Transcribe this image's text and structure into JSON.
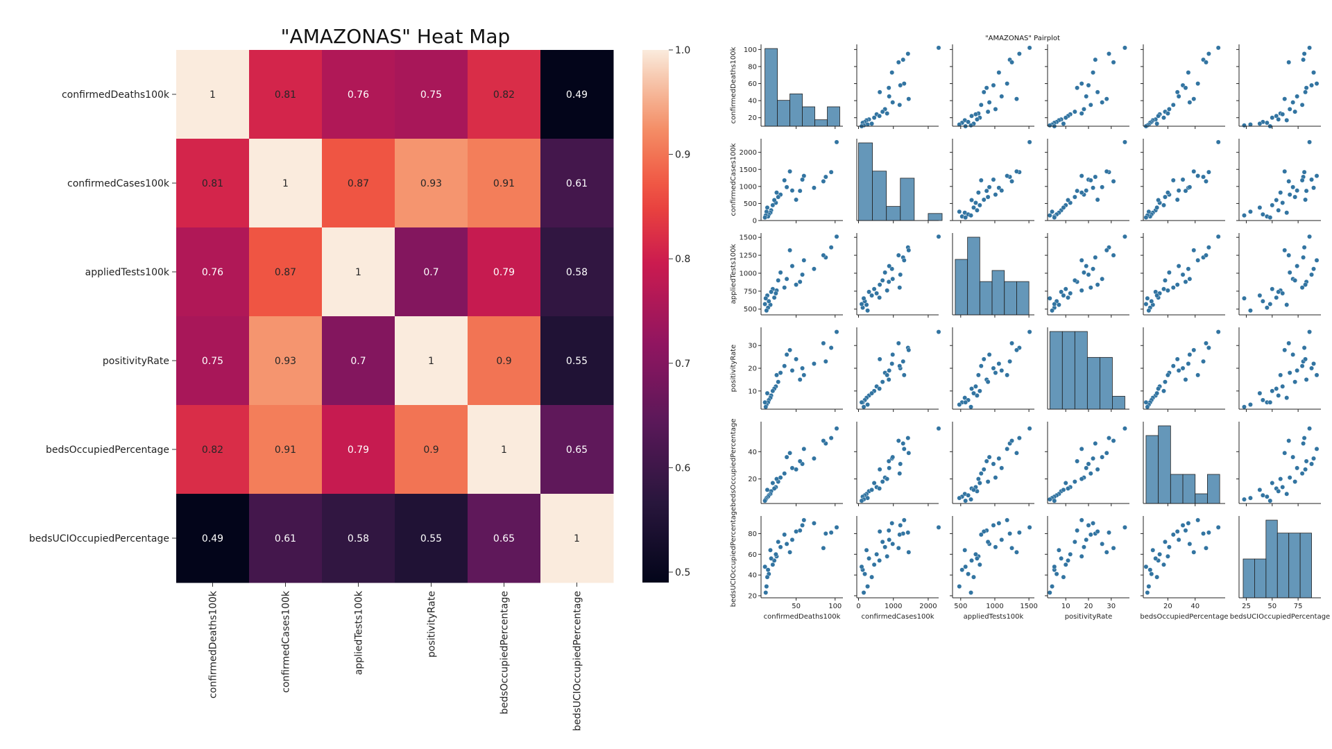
{
  "chart_data": [
    {
      "type": "heatmap",
      "title": "\"AMAZONAS\" Heat Map",
      "variables": [
        "confirmedDeaths100k",
        "confirmedCases100k",
        "appliedTests100k",
        "positivityRate",
        "bedsOccupiedPercentage",
        "bedsUCIOccupiedPercentage"
      ],
      "matrix": [
        [
          1,
          0.81,
          0.76,
          0.75,
          0.82,
          0.49
        ],
        [
          0.81,
          1,
          0.87,
          0.93,
          0.91,
          0.61
        ],
        [
          0.76,
          0.87,
          1,
          0.7,
          0.79,
          0.58
        ],
        [
          0.75,
          0.93,
          0.7,
          1,
          0.9,
          0.55
        ],
        [
          0.82,
          0.91,
          0.79,
          0.9,
          1,
          0.65
        ],
        [
          0.49,
          0.61,
          0.58,
          0.55,
          0.65,
          1
        ]
      ],
      "colorbar": {
        "range": [
          0.49,
          1.0
        ],
        "ticks": [
          0.5,
          0.6,
          0.7,
          0.8,
          0.9,
          1.0
        ],
        "tick_labels": [
          "0.5",
          "0.6",
          "0.7",
          "0.8",
          "0.9",
          "1.0"
        ]
      }
    },
    {
      "type": "scatter",
      "title": "\"AMAZONAS\" Pairplot",
      "color": "#3274a1",
      "variables": [
        {
          "name": "confirmedDeaths100k",
          "range": [
            5,
            110
          ],
          "ticks": [
            50,
            100
          ],
          "y_range": [
            10,
            106
          ],
          "y_ticks": [
            20,
            40,
            60,
            80,
            100
          ]
        },
        {
          "name": "confirmedCases100k",
          "range": [
            -50,
            2300
          ],
          "ticks": [
            0,
            1000,
            2000
          ],
          "y_range": [
            0,
            2400
          ],
          "y_ticks": [
            0,
            500,
            1000,
            1500,
            2000
          ]
        },
        {
          "name": "appliedTests100k",
          "range": [
            380,
            1580
          ],
          "ticks": [
            500,
            1000,
            1500
          ],
          "y_range": [
            420,
            1560
          ],
          "y_ticks": [
            500,
            750,
            1000,
            1250,
            1500
          ]
        },
        {
          "name": "positivityRate",
          "range": [
            2,
            38
          ],
          "ticks": [
            10,
            20,
            30
          ],
          "y_range": [
            2,
            38
          ],
          "y_ticks": [
            10,
            20,
            30
          ]
        },
        {
          "name": "bedsOccupiedPercentage",
          "range": [
            2,
            62
          ],
          "ticks": [
            20,
            40
          ],
          "y_range": [
            2,
            62
          ],
          "y_ticks": [
            20,
            40
          ]
        },
        {
          "name": "bedsUCIOccupiedPercentage",
          "range": [
            18,
            97
          ],
          "ticks": [
            25,
            50,
            75
          ],
          "y_range": [
            18,
            97
          ],
          "y_ticks": [
            20,
            40,
            60,
            80
          ]
        }
      ],
      "points": [
        [
          102,
          2300,
          1510,
          36,
          57,
          86
        ],
        [
          95,
          1420,
          1360,
          29,
          50,
          81
        ],
        [
          88,
          1280,
          1220,
          23,
          46,
          80
        ],
        [
          73,
          960,
          1060,
          22,
          35,
          90
        ],
        [
          60,
          1310,
          1180,
          17,
          42,
          93
        ],
        [
          58,
          1200,
          980,
          20,
          31,
          88
        ],
        [
          55,
          870,
          880,
          15,
          33,
          83
        ],
        [
          50,
          610,
          840,
          24,
          27,
          82
        ],
        [
          45,
          880,
          1100,
          19,
          28,
          74
        ],
        [
          42,
          1440,
          1320,
          28,
          39,
          62
        ],
        [
          38,
          980,
          920,
          26,
          36,
          70
        ],
        [
          35,
          1180,
          800,
          21,
          24,
          79
        ],
        [
          30,
          760,
          1010,
          18,
          21,
          67
        ],
        [
          27,
          690,
          900,
          14,
          18,
          72
        ],
        [
          25,
          820,
          760,
          17,
          20,
          58
        ],
        [
          24,
          520,
          720,
          12,
          14,
          60
        ],
        [
          22,
          600,
          660,
          11,
          13,
          54
        ],
        [
          20,
          450,
          780,
          10,
          17,
          50
        ],
        [
          18,
          300,
          740,
          8,
          11,
          56
        ],
        [
          17,
          230,
          560,
          7,
          9,
          64
        ],
        [
          15,
          180,
          610,
          6,
          8,
          41
        ],
        [
          14,
          120,
          520,
          5,
          7,
          45
        ],
        [
          13,
          380,
          690,
          9,
          12,
          38
        ],
        [
          12,
          260,
          480,
          4,
          6,
          29
        ],
        [
          11,
          150,
          650,
          3,
          5,
          23
        ],
        [
          10,
          90,
          570,
          5,
          4,
          48
        ],
        [
          85,
          1150,
          1250,
          31,
          48,
          66
        ]
      ],
      "histograms": [
        {
          "bins": [
            10,
            26,
            42,
            58,
            74,
            90,
            106
          ],
          "counts": [
            12,
            4,
            5,
            3,
            1,
            3
          ]
        },
        {
          "bins": [
            0,
            400,
            800,
            1200,
            1600,
            2000,
            2400
          ],
          "counts": [
            11,
            7,
            2,
            6,
            0,
            1
          ]
        },
        {
          "bins": [
            420,
            600,
            780,
            960,
            1140,
            1320,
            1500
          ],
          "counts": [
            5,
            7,
            3,
            4,
            3,
            3
          ]
        },
        {
          "bins": [
            3,
            8.5,
            14,
            19.5,
            25,
            30.5,
            36
          ],
          "counts": [
            6,
            6,
            6,
            4,
            4,
            1
          ]
        },
        {
          "bins": [
            4,
            13,
            22,
            31,
            40,
            49,
            58
          ],
          "counts": [
            7,
            8,
            3,
            3,
            1,
            3
          ]
        },
        {
          "bins": [
            22,
            33,
            44,
            55,
            66,
            77,
            88
          ],
          "counts": [
            3,
            3,
            6,
            5,
            5,
            5
          ]
        }
      ]
    }
  ]
}
